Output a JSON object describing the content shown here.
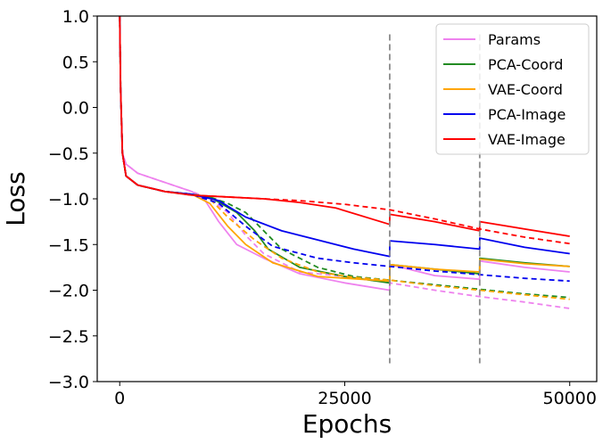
{
  "chart_data": {
    "type": "line",
    "title": "",
    "xlabel": "Epochs",
    "ylabel": "Loss",
    "xlim": [
      -2500,
      53000
    ],
    "ylim": [
      -3.0,
      1.0
    ],
    "x_ticks": [
      0,
      25000,
      50000
    ],
    "x_tick_labels": [
      "0",
      "25000",
      "50000"
    ],
    "y_ticks": [
      1.0,
      0.5,
      0.0,
      -0.5,
      -1.0,
      -1.5,
      -2.0,
      -2.5,
      -3.0
    ],
    "y_tick_labels": [
      "1.0",
      "0.5",
      "0.0",
      "−0.5",
      "−1.0",
      "−1.5",
      "−2.0",
      "−2.5",
      "−3.0"
    ],
    "grid": false,
    "legend_position": "top-right",
    "vlines": [
      {
        "x": 30000,
        "y_range": [
          -2.8,
          0.8
        ],
        "color": "#8c8c8c",
        "style": "dashed"
      },
      {
        "x": 40000,
        "y_range": [
          -2.8,
          0.8
        ],
        "color": "#8c8c8c",
        "style": "dashed"
      }
    ],
    "series": [
      {
        "name": "Params",
        "color": "#ee82ee",
        "style": "solid",
        "points": [
          [
            0,
            1.0
          ],
          [
            100,
            0.2
          ],
          [
            300,
            -0.5
          ],
          [
            700,
            -0.62
          ],
          [
            2000,
            -0.72
          ],
          [
            5000,
            -0.82
          ],
          [
            8000,
            -0.92
          ],
          [
            9500,
            -1.02
          ],
          [
            11000,
            -1.25
          ],
          [
            13000,
            -1.5
          ],
          [
            16000,
            -1.65
          ],
          [
            20000,
            -1.82
          ],
          [
            25000,
            -1.92
          ],
          [
            29990,
            -2.0
          ],
          [
            30010,
            -1.72
          ],
          [
            35000,
            -1.84
          ],
          [
            39990,
            -1.88
          ],
          [
            40010,
            -1.68
          ],
          [
            45000,
            -1.75
          ],
          [
            50000,
            -1.8
          ]
        ]
      },
      {
        "name": "Params",
        "color": "#ee82ee",
        "style": "dashed",
        "points": [
          [
            0,
            1.0
          ],
          [
            100,
            0.2
          ],
          [
            300,
            -0.5
          ],
          [
            700,
            -0.62
          ],
          [
            2000,
            -0.72
          ],
          [
            5000,
            -0.82
          ],
          [
            8000,
            -0.92
          ],
          [
            10000,
            -1.0
          ],
          [
            12000,
            -1.15
          ],
          [
            14000,
            -1.4
          ],
          [
            16000,
            -1.6
          ],
          [
            20000,
            -1.8
          ],
          [
            25000,
            -1.85
          ],
          [
            30000,
            -1.92
          ],
          [
            35000,
            -2.0
          ],
          [
            40000,
            -2.07
          ],
          [
            45000,
            -2.13
          ],
          [
            50000,
            -2.2
          ]
        ]
      },
      {
        "name": "PCA-Coord",
        "color": "#228b22",
        "style": "solid",
        "points": [
          [
            0,
            1.0
          ],
          [
            100,
            0.2
          ],
          [
            300,
            -0.5
          ],
          [
            700,
            -0.75
          ],
          [
            2000,
            -0.85
          ],
          [
            5000,
            -0.92
          ],
          [
            8000,
            -0.95
          ],
          [
            10000,
            -0.98
          ],
          [
            13000,
            -1.15
          ],
          [
            15000,
            -1.35
          ],
          [
            16500,
            -1.55
          ],
          [
            20000,
            -1.75
          ],
          [
            25000,
            -1.85
          ],
          [
            29990,
            -1.92
          ],
          [
            30010,
            -1.72
          ],
          [
            35000,
            -1.77
          ],
          [
            39990,
            -1.82
          ],
          [
            40010,
            -1.65
          ],
          [
            45000,
            -1.7
          ],
          [
            50000,
            -1.74
          ]
        ]
      },
      {
        "name": "PCA-Coord",
        "color": "#228b22",
        "style": "dashed",
        "points": [
          [
            0,
            1.0
          ],
          [
            100,
            0.2
          ],
          [
            300,
            -0.5
          ],
          [
            700,
            -0.75
          ],
          [
            2000,
            -0.85
          ],
          [
            5000,
            -0.92
          ],
          [
            8000,
            -0.95
          ],
          [
            10000,
            -0.98
          ],
          [
            12000,
            -1.05
          ],
          [
            14000,
            -1.15
          ],
          [
            16000,
            -1.35
          ],
          [
            18000,
            -1.55
          ],
          [
            22000,
            -1.75
          ],
          [
            26000,
            -1.85
          ],
          [
            30000,
            -1.89
          ],
          [
            35000,
            -1.94
          ],
          [
            40000,
            -1.99
          ],
          [
            45000,
            -2.04
          ],
          [
            50000,
            -2.08
          ]
        ]
      },
      {
        "name": "VAE-Coord",
        "color": "#ffa500",
        "style": "solid",
        "points": [
          [
            0,
            1.0
          ],
          [
            100,
            0.2
          ],
          [
            300,
            -0.5
          ],
          [
            700,
            -0.75
          ],
          [
            2000,
            -0.85
          ],
          [
            5000,
            -0.92
          ],
          [
            8000,
            -0.95
          ],
          [
            10000,
            -1.05
          ],
          [
            12000,
            -1.3
          ],
          [
            14000,
            -1.5
          ],
          [
            17000,
            -1.7
          ],
          [
            22000,
            -1.85
          ],
          [
            29990,
            -1.9
          ],
          [
            30010,
            -1.72
          ],
          [
            35000,
            -1.77
          ],
          [
            39990,
            -1.8
          ],
          [
            40010,
            -1.66
          ],
          [
            45000,
            -1.71
          ],
          [
            50000,
            -1.74
          ]
        ]
      },
      {
        "name": "VAE-Coord",
        "color": "#ffa500",
        "style": "dashed",
        "points": [
          [
            0,
            1.0
          ],
          [
            100,
            0.2
          ],
          [
            300,
            -0.5
          ],
          [
            700,
            -0.75
          ],
          [
            2000,
            -0.85
          ],
          [
            5000,
            -0.92
          ],
          [
            8000,
            -0.95
          ],
          [
            10000,
            -1.0
          ],
          [
            12000,
            -1.2
          ],
          [
            15000,
            -1.45
          ],
          [
            18000,
            -1.65
          ],
          [
            22000,
            -1.8
          ],
          [
            26000,
            -1.86
          ],
          [
            30000,
            -1.89
          ],
          [
            35000,
            -1.95
          ],
          [
            40000,
            -2.0
          ],
          [
            45000,
            -2.05
          ],
          [
            50000,
            -2.1
          ]
        ]
      },
      {
        "name": "PCA-Image",
        "color": "#0000ee",
        "style": "solid",
        "points": [
          [
            0,
            1.0
          ],
          [
            100,
            0.2
          ],
          [
            300,
            -0.5
          ],
          [
            700,
            -0.75
          ],
          [
            2000,
            -0.85
          ],
          [
            5000,
            -0.92
          ],
          [
            8000,
            -0.95
          ],
          [
            11000,
            -1.02
          ],
          [
            14000,
            -1.2
          ],
          [
            18000,
            -1.35
          ],
          [
            22000,
            -1.45
          ],
          [
            26000,
            -1.55
          ],
          [
            29990,
            -1.63
          ],
          [
            30010,
            -1.46
          ],
          [
            35000,
            -1.5
          ],
          [
            39990,
            -1.55
          ],
          [
            40010,
            -1.43
          ],
          [
            45000,
            -1.53
          ],
          [
            50000,
            -1.6
          ]
        ]
      },
      {
        "name": "PCA-Image",
        "color": "#0000ee",
        "style": "dashed",
        "points": [
          [
            0,
            1.0
          ],
          [
            100,
            0.2
          ],
          [
            300,
            -0.5
          ],
          [
            700,
            -0.75
          ],
          [
            2000,
            -0.85
          ],
          [
            5000,
            -0.92
          ],
          [
            8000,
            -0.95
          ],
          [
            11000,
            -1.05
          ],
          [
            14000,
            -1.3
          ],
          [
            17000,
            -1.52
          ],
          [
            22000,
            -1.65
          ],
          [
            26000,
            -1.7
          ],
          [
            30000,
            -1.74
          ],
          [
            35000,
            -1.79
          ],
          [
            40000,
            -1.83
          ],
          [
            45000,
            -1.87
          ],
          [
            50000,
            -1.9
          ]
        ]
      },
      {
        "name": "VAE-Image",
        "color": "#ff0000",
        "style": "solid",
        "points": [
          [
            0,
            1.0
          ],
          [
            100,
            0.2
          ],
          [
            300,
            -0.5
          ],
          [
            700,
            -0.75
          ],
          [
            2000,
            -0.85
          ],
          [
            5000,
            -0.92
          ],
          [
            8000,
            -0.96
          ],
          [
            12000,
            -0.98
          ],
          [
            16000,
            -1.0
          ],
          [
            20000,
            -1.04
          ],
          [
            24000,
            -1.1
          ],
          [
            29990,
            -1.28
          ],
          [
            30010,
            -1.17
          ],
          [
            35000,
            -1.25
          ],
          [
            39990,
            -1.35
          ],
          [
            40010,
            -1.25
          ],
          [
            45000,
            -1.33
          ],
          [
            50000,
            -1.41
          ]
        ]
      },
      {
        "name": "VAE-Image",
        "color": "#ff0000",
        "style": "dashed",
        "points": [
          [
            0,
            1.0
          ],
          [
            100,
            0.2
          ],
          [
            300,
            -0.5
          ],
          [
            700,
            -0.75
          ],
          [
            2000,
            -0.85
          ],
          [
            5000,
            -0.92
          ],
          [
            8000,
            -0.96
          ],
          [
            12000,
            -0.98
          ],
          [
            16000,
            -1.0
          ],
          [
            20000,
            -1.02
          ],
          [
            25000,
            -1.06
          ],
          [
            30000,
            -1.12
          ],
          [
            35000,
            -1.22
          ],
          [
            40000,
            -1.33
          ],
          [
            45000,
            -1.42
          ],
          [
            50000,
            -1.49
          ]
        ]
      }
    ],
    "legend": [
      {
        "label": "Params",
        "color": "#ee82ee"
      },
      {
        "label": "PCA-Coord",
        "color": "#228b22"
      },
      {
        "label": "VAE-Coord",
        "color": "#ffa500"
      },
      {
        "label": "PCA-Image",
        "color": "#0000ee"
      },
      {
        "label": "VAE-Image",
        "color": "#ff0000"
      }
    ]
  }
}
